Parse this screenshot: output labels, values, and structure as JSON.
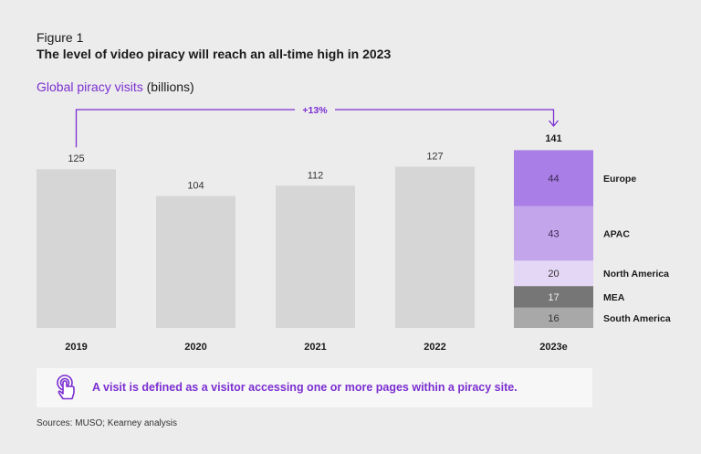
{
  "header": {
    "figure_label": "Figure 1",
    "title": "The level of video piracy will reach an all-time high in 2023",
    "subtitle_accent": "Global piracy visits",
    "subtitle_rest": " (billions)"
  },
  "chart_data": {
    "type": "bar",
    "categories": [
      "2019",
      "2020",
      "2021",
      "2022",
      "2023e"
    ],
    "values": [
      125,
      104,
      112,
      127,
      141
    ],
    "ylim": [
      0,
      141
    ],
    "growth_label": "+13%",
    "stacked_last": {
      "category": "2023e",
      "total": 141,
      "segments": [
        {
          "name": "Europe",
          "value": 44,
          "color": "#a97ee6",
          "text_color": "#3b2a55"
        },
        {
          "name": "APAC",
          "value": 43,
          "color": "#c3a5ec",
          "text_color": "#3b2a55"
        },
        {
          "name": "North America",
          "value": 20,
          "color": "#e4d7f6",
          "text_color": "#333333"
        },
        {
          "name": "MEA",
          "value": 17,
          "color": "#767676",
          "text_color": "#f0f0f0"
        },
        {
          "name": "South America",
          "value": 16,
          "color": "#a8a8a8",
          "text_color": "#333333"
        }
      ]
    },
    "bar_color": "#d6d6d6",
    "accent_color": "#7b2fd1"
  },
  "note": {
    "text": "A visit is defined as a visitor accessing one or more pages within a piracy site.",
    "icon": "tap-hand-icon"
  },
  "sources": "Sources: MUSO; Kearney analysis"
}
